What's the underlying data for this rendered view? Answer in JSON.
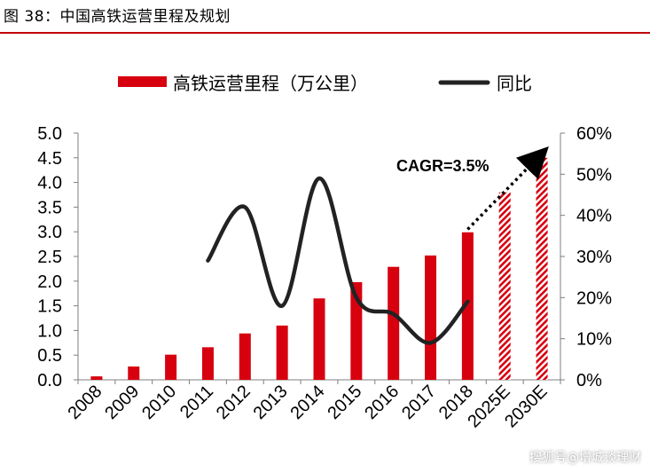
{
  "header": {
    "title": "图 38：中国高铁运营里程及规划"
  },
  "watermark": {
    "text": "搜狐号@增城谈理财"
  },
  "colors": {
    "bar": "#d7000f",
    "line": "#222222",
    "rule": "#c00000",
    "axis": "#7f7f7f"
  },
  "chart_data": {
    "type": "bar",
    "categories": [
      "2008",
      "2009",
      "2010",
      "2011",
      "2012",
      "2013",
      "2014",
      "2015",
      "2016",
      "2017",
      "2018",
      "2025E",
      "2030E"
    ],
    "series": [
      {
        "name": "高铁运营里程（万公里）",
        "type": "bar",
        "axis": "left",
        "values": [
          0.07,
          0.27,
          0.51,
          0.66,
          0.94,
          1.1,
          1.65,
          1.98,
          2.29,
          2.52,
          2.99,
          3.8,
          4.5
        ],
        "hatched": [
          false,
          false,
          false,
          false,
          false,
          false,
          false,
          false,
          false,
          false,
          false,
          true,
          true
        ]
      },
      {
        "name": "同比",
        "type": "line",
        "axis": "right",
        "x": [
          "2011",
          "2012",
          "2013",
          "2014",
          "2015",
          "2016",
          "2017",
          "2018"
        ],
        "values": [
          0.29,
          0.42,
          0.18,
          0.49,
          0.2,
          0.16,
          0.09,
          0.19
        ]
      }
    ],
    "y_left": {
      "ylim": [
        0,
        5
      ],
      "ticks": [
        "0.0",
        "0.5",
        "1.0",
        "1.5",
        "2.0",
        "2.5",
        "3.0",
        "3.5",
        "4.0",
        "4.5",
        "5.0"
      ]
    },
    "y_right": {
      "ylim": [
        0,
        0.6
      ],
      "ticks": [
        "0%",
        "10%",
        "20%",
        "30%",
        "40%",
        "50%",
        "60%"
      ]
    },
    "annotation": {
      "text": "CAGR=3.5%",
      "arrow_from": [
        "2018",
        3.05
      ],
      "arrow_to": [
        "2030E",
        4.55
      ]
    },
    "legend": "top"
  }
}
